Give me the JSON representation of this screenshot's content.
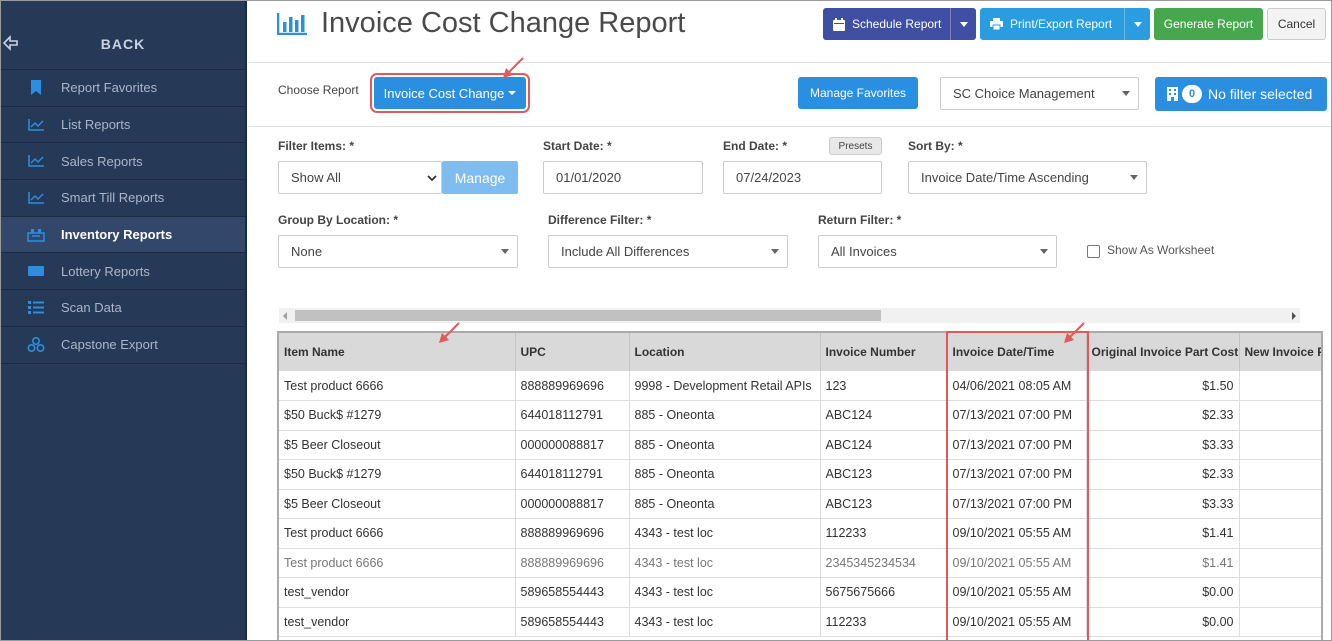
{
  "sidebar": {
    "back_label": "BACK",
    "items": [
      {
        "label": "Report Favorites",
        "icon": "bookmark-icon"
      },
      {
        "label": "List Reports",
        "icon": "line-chart-icon"
      },
      {
        "label": "Sales Reports",
        "icon": "line-chart-icon"
      },
      {
        "label": "Smart Till Reports",
        "icon": "line-chart-icon"
      },
      {
        "label": "Inventory Reports",
        "icon": "inventory-icon",
        "active": true
      },
      {
        "label": "Lottery Reports",
        "icon": "ticket-icon"
      },
      {
        "label": "Scan Data",
        "icon": "list-icon"
      },
      {
        "label": "Capstone Export",
        "icon": "cubes-icon"
      }
    ]
  },
  "header": {
    "title": "Invoice Cost Change Report",
    "schedule_label": "Schedule Report",
    "print_label": "Print/Export Report",
    "generate_label": "Generate Report",
    "cancel_label": "Cancel"
  },
  "report_bar": {
    "choose_label": "Choose Report",
    "choose_value": "Invoice Cost Change",
    "manage_favorites_label": "Manage Favorites",
    "org_select": "SC Choice Management",
    "filter_count": "0",
    "filter_label": "No filter selected"
  },
  "filters": {
    "filter_items_label": "Filter Items: *",
    "filter_items_value": "Show All",
    "manage_label": "Manage",
    "start_date_label": "Start Date: *",
    "start_date": "01/01/2020",
    "end_date_label": "End Date: *",
    "end_date": "07/24/2023",
    "presets_label": "Presets",
    "sort_by_label": "Sort By: *",
    "sort_by_value": "Invoice Date/Time Ascending",
    "group_by_label": "Group By Location: *",
    "group_by_value": "None",
    "difference_label": "Difference Filter: *",
    "difference_value": "Include All Differences",
    "return_label": "Return Filter: *",
    "return_value": "All Invoices",
    "worksheet_label": "Show As Worksheet"
  },
  "table": {
    "columns": [
      "Item Name",
      "UPC",
      "Location",
      "Invoice Number",
      "Invoice Date/Time",
      "Original Invoice Part Cost",
      "New Invoice P"
    ],
    "rows": [
      [
        "Test product 6666",
        "888889969696",
        "9998 - Development Retail APIs",
        "123",
        "04/06/2021 08:05 AM",
        "$1.50",
        ""
      ],
      [
        "$50 Buck$ #1279",
        "644018112791",
        "885 - Oneonta",
        "ABC124",
        "07/13/2021 07:00 PM",
        "$2.33",
        ""
      ],
      [
        "$5 Beer Closeout",
        "000000088817",
        "885 - Oneonta",
        "ABC124",
        "07/13/2021 07:00 PM",
        "$3.33",
        ""
      ],
      [
        "$50 Buck$ #1279",
        "644018112791",
        "885 - Oneonta",
        "ABC123",
        "07/13/2021 07:00 PM",
        "$2.33",
        ""
      ],
      [
        "$5 Beer Closeout",
        "000000088817",
        "885 - Oneonta",
        "ABC123",
        "07/13/2021 07:00 PM",
        "$3.33",
        ""
      ],
      [
        "Test product 6666",
        "888889969696",
        "4343 - test loc",
        "112233",
        "09/10/2021 05:55 AM",
        "$1.41",
        ""
      ],
      [
        "Test product 6666",
        "888889969696",
        "4343 - test loc",
        "2345345234534",
        "09/10/2021 05:55 AM",
        "$1.41",
        ""
      ],
      [
        "test_vendor",
        "589658554443",
        "4343 - test loc",
        "5675675666",
        "09/10/2021 05:55 AM",
        "$0.00",
        ""
      ],
      [
        "test_vendor",
        "589658554443",
        "4343 - test loc",
        "112233",
        "09/10/2021 05:55 AM",
        "$0.00",
        ""
      ]
    ]
  },
  "colors": {
    "sidebar_bg": "#263957",
    "accent_blue": "#2a8fe0",
    "schedule_blue": "#3f4fa3",
    "generate_green": "#46a84c",
    "annotation_red": "#e05a5a"
  }
}
